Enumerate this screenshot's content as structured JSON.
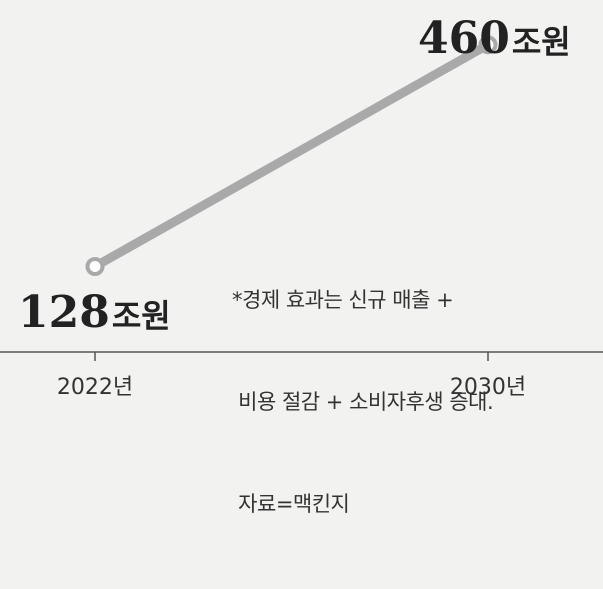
{
  "chart_data": {
    "type": "line",
    "categories": [
      "2022년",
      "2030년"
    ],
    "series": [
      {
        "values": [
          128,
          460
        ],
        "labels": [
          "128",
          "460"
        ],
        "unit": "조원"
      }
    ],
    "title": "",
    "xlabel": "",
    "ylabel": "",
    "ylim": [
      0,
      500
    ],
    "grid": false,
    "line_color": "#a9a9a9"
  },
  "note": {
    "lines": [
      "*경제 효과는 신규 매출 +",
      " 비용 절감 + 소비자후생 증대.",
      " 자료=맥킨지"
    ]
  }
}
